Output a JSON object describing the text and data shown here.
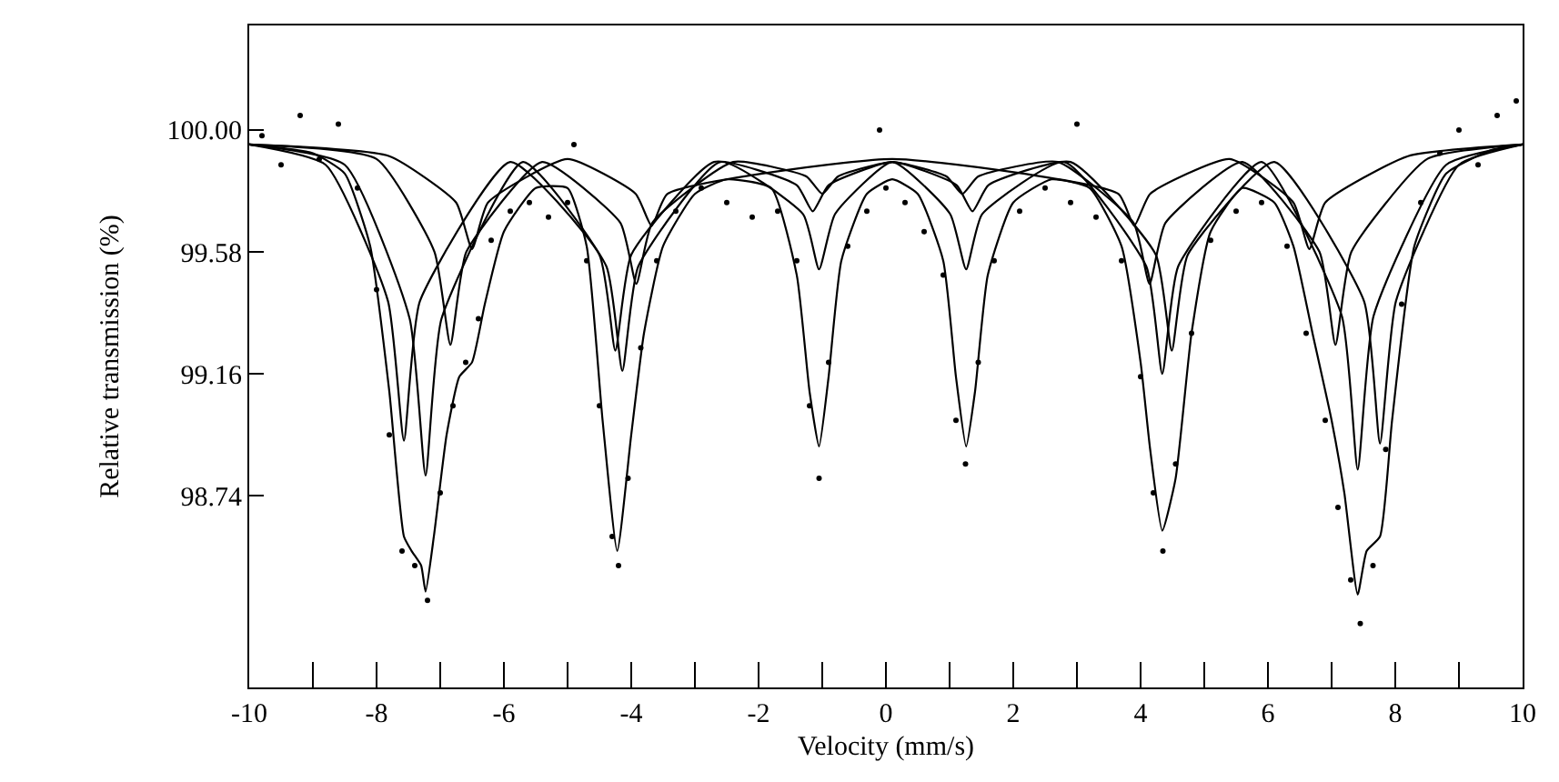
{
  "chart_data": {
    "type": "line",
    "xlabel": "Velocity (mm/s)",
    "ylabel": "Relative transmission (%)",
    "xlim": [
      -10,
      10
    ],
    "ylim": [
      98.08,
      100.36
    ],
    "xticks": [
      -10,
      {
        "value": -9,
        "label": null
      },
      -8,
      {
        "value": -7,
        "label": null
      },
      -6,
      {
        "value": -5,
        "label": null
      },
      -4,
      {
        "value": -3,
        "label": null
      },
      -2,
      {
        "value": -1,
        "label": null
      },
      0,
      {
        "value": 1,
        "label": null
      },
      2,
      {
        "value": 3,
        "label": null
      },
      4,
      {
        "value": 5,
        "label": null
      },
      6,
      {
        "value": 7,
        "label": null
      },
      8,
      {
        "value": 9,
        "label": null
      },
      10
    ],
    "yticks": [
      {
        "value": 100,
        "label": "100.00"
      },
      99.58,
      99.16,
      98.74
    ],
    "grid": false,
    "series": [
      {
        "type": "scatter",
        "marker": "circle",
        "color": "#000000",
        "x": [
          -9.8,
          -9.5,
          -9.2,
          -8.9,
          -8.6,
          -8.3,
          -8.0,
          -7.8,
          -7.6,
          -7.4,
          -7.2,
          -7.0,
          -6.8,
          -6.6,
          -6.4,
          -6.2,
          -5.9,
          -5.6,
          -5.3,
          -5.0,
          -4.9,
          -4.7,
          -4.5,
          -4.3,
          -4.2,
          -4.05,
          -3.85,
          -3.6,
          -3.3,
          -2.9,
          -2.5,
          -2.1,
          -1.7,
          -1.4,
          -1.2,
          -1.05,
          -0.9,
          -0.6,
          -0.3,
          -0.1,
          0.0,
          0.3,
          0.6,
          0.9,
          1.1,
          1.25,
          1.45,
          1.7,
          2.1,
          2.5,
          2.9,
          3.0,
          3.3,
          3.7,
          4.0,
          4.2,
          4.35,
          4.55,
          4.8,
          5.1,
          5.5,
          5.9,
          6.3,
          6.6,
          6.9,
          7.1,
          7.3,
          7.45,
          7.65,
          7.85,
          8.1,
          8.4,
          8.7,
          9.0,
          9.3,
          9.6,
          9.9
        ],
        "values": [
          99.98,
          99.88,
          100.05,
          99.9,
          100.02,
          99.8,
          99.45,
          98.95,
          98.55,
          98.5,
          98.38,
          98.75,
          99.05,
          99.2,
          99.35,
          99.62,
          99.72,
          99.75,
          99.7,
          99.75,
          99.95,
          99.55,
          99.05,
          98.6,
          98.5,
          98.8,
          99.25,
          99.55,
          99.72,
          99.8,
          99.75,
          99.7,
          99.72,
          99.55,
          99.05,
          98.8,
          99.2,
          99.6,
          99.72,
          100.0,
          99.8,
          99.75,
          99.65,
          99.5,
          99.0,
          98.85,
          99.2,
          99.55,
          99.72,
          99.8,
          99.75,
          100.02,
          99.7,
          99.55,
          99.15,
          98.75,
          98.55,
          98.85,
          99.3,
          99.62,
          99.72,
          99.75,
          99.6,
          99.3,
          99.0,
          98.7,
          98.45,
          98.3,
          98.5,
          98.9,
          99.4,
          99.75,
          99.92,
          100.0,
          99.88,
          100.05,
          100.1
        ]
      },
      {
        "color": "#000000",
        "x": [
          -10,
          -9,
          -8.5,
          -8.1,
          -7.8,
          -7.57,
          -7.45,
          -7.3,
          -7.23,
          -7.1,
          -6.9,
          -6.7,
          -6.5,
          -6.3,
          -6.0,
          -5.5,
          -5.0,
          -4.7,
          -4.45,
          -4.22,
          -4.0,
          -3.8,
          -3.5,
          -3.0,
          -2.5,
          -1.8,
          -1.4,
          -1.2,
          -1.05,
          -0.9,
          -0.7,
          -0.3,
          0.1,
          0.5,
          0.9,
          1.1,
          1.26,
          1.4,
          1.6,
          2.0,
          2.6,
          3.2,
          3.7,
          4.0,
          4.15,
          4.34,
          4.55,
          4.8,
          5.1,
          5.6,
          6.1,
          6.4,
          6.7,
          7.0,
          7.2,
          7.41,
          7.55,
          7.76,
          7.95,
          8.3,
          8.8,
          9.5,
          10
        ],
        "values": [
          99.95,
          99.92,
          99.85,
          99.6,
          99.1,
          98.6,
          98.55,
          98.5,
          98.41,
          98.6,
          98.95,
          99.15,
          99.2,
          99.4,
          99.65,
          99.8,
          99.8,
          99.6,
          99.0,
          98.55,
          98.95,
          99.3,
          99.6,
          99.78,
          99.83,
          99.8,
          99.5,
          99.1,
          98.91,
          99.15,
          99.55,
          99.78,
          99.83,
          99.78,
          99.55,
          99.15,
          98.91,
          99.1,
          99.5,
          99.75,
          99.83,
          99.8,
          99.6,
          99.2,
          98.9,
          98.62,
          98.8,
          99.3,
          99.65,
          99.8,
          99.75,
          99.6,
          99.3,
          99.0,
          98.75,
          98.4,
          98.55,
          98.6,
          99.0,
          99.6,
          99.85,
          99.93,
          99.95
        ]
      },
      {
        "color": "#000000",
        "x": [
          -10,
          -8.5,
          -7.48,
          -7.23,
          -6.98,
          -5.7,
          -4.39,
          -4.14,
          -3.89,
          -2.6,
          -1.3,
          -1.05,
          -0.8,
          0.1,
          1.01,
          1.26,
          1.51,
          2.8,
          4.09,
          4.34,
          4.59,
          5.9,
          7.16,
          7.41,
          7.66,
          8.8,
          10
        ],
        "values": [
          99.95,
          99.88,
          99.35,
          98.81,
          99.35,
          99.89,
          99.53,
          99.17,
          99.53,
          99.89,
          99.71,
          99.52,
          99.71,
          99.89,
          99.71,
          99.52,
          99.71,
          99.89,
          99.53,
          99.16,
          99.53,
          99.89,
          99.36,
          98.83,
          99.36,
          99.88,
          99.95
        ]
      },
      {
        "color": "#000000",
        "x": [
          -10,
          -8.8,
          -7.82,
          -7.57,
          -7.32,
          -5.9,
          -4.5,
          -4.25,
          -4.0,
          -2.7,
          -1.4,
          -1.15,
          -0.9,
          0.1,
          1.11,
          1.36,
          1.61,
          2.9,
          4.24,
          4.49,
          4.74,
          6.1,
          7.51,
          7.76,
          8.01,
          9,
          10
        ],
        "values": [
          99.95,
          99.88,
          99.41,
          98.93,
          99.41,
          99.89,
          99.57,
          99.24,
          99.57,
          99.89,
          99.81,
          99.72,
          99.81,
          99.89,
          99.81,
          99.72,
          99.81,
          99.89,
          99.57,
          99.24,
          99.57,
          99.89,
          99.41,
          98.92,
          99.41,
          99.88,
          99.95
        ]
      },
      {
        "color": "#000000",
        "x": [
          -10,
          -8,
          -7.09,
          -6.84,
          -6.59,
          -5.4,
          -4.17,
          -3.92,
          -3.67,
          -2.4,
          -1.25,
          -1.0,
          -0.75,
          0.1,
          0.95,
          1.2,
          1.45,
          2.7,
          3.89,
          4.14,
          4.39,
          5.6,
          6.81,
          7.06,
          7.31,
          8.5,
          10
        ],
        "values": [
          99.95,
          99.9,
          99.58,
          99.26,
          99.58,
          99.89,
          99.68,
          99.47,
          99.68,
          99.89,
          99.84,
          99.78,
          99.84,
          99.89,
          99.84,
          99.78,
          99.84,
          99.89,
          99.68,
          99.47,
          99.68,
          99.89,
          99.58,
          99.26,
          99.58,
          99.9,
          99.95
        ]
      },
      {
        "color": "#000000",
        "x": [
          -10,
          -7.8,
          -6.75,
          -6.5,
          -6.25,
          -5,
          -3.93,
          -3.68,
          -3.43,
          0.1,
          3.65,
          3.9,
          4.15,
          5.4,
          6.4,
          6.65,
          6.9,
          8.2,
          10
        ],
        "values": [
          99.95,
          99.91,
          99.75,
          99.59,
          99.75,
          99.9,
          99.78,
          99.67,
          99.78,
          99.9,
          99.78,
          99.67,
          99.78,
          99.9,
          99.75,
          99.59,
          99.75,
          99.91,
          99.95
        ]
      }
    ]
  }
}
